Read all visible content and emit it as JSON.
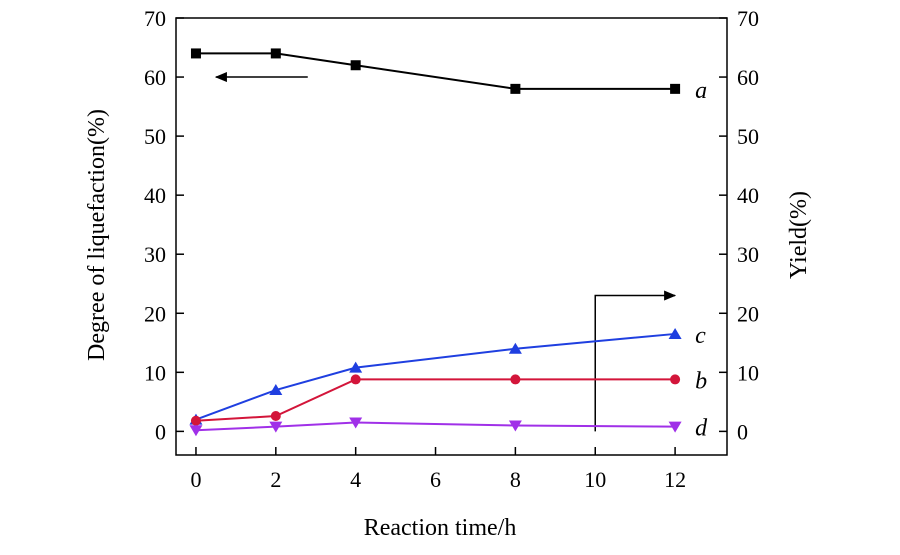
{
  "chart_data": {
    "type": "line",
    "title": "",
    "xlabel": "Reaction time/h",
    "ylabel": "Degree of liquefaction(%)",
    "ylabel_right": "Yield(%)",
    "xlim": [
      -0.5,
      13.3
    ],
    "ylim": [
      -4,
      70
    ],
    "ylim_right": [
      -4,
      70
    ],
    "xticks": [
      0,
      2,
      4,
      6,
      8,
      10,
      12
    ],
    "yticks": [
      0,
      10,
      20,
      30,
      40,
      50,
      60,
      70
    ],
    "yticks_right": [
      0,
      10,
      20,
      30,
      40,
      50,
      60,
      70
    ],
    "grid": false,
    "series": [
      {
        "name": "a",
        "axis": "left",
        "color": "#000000",
        "marker": "square",
        "x": [
          0,
          2,
          4,
          8,
          12
        ],
        "values": [
          64,
          64,
          62,
          58,
          58
        ]
      },
      {
        "name": "c",
        "axis": "right",
        "color": "#1f3fe0",
        "marker": "triangle-up",
        "x": [
          0,
          2,
          4,
          8,
          12
        ],
        "values": [
          2,
          7,
          10.8,
          14,
          16.5
        ]
      },
      {
        "name": "b",
        "axis": "right",
        "color": "#d3153a",
        "marker": "circle",
        "x": [
          0,
          2,
          4,
          8,
          12
        ],
        "values": [
          1.8,
          2.6,
          8.8,
          8.8,
          8.8
        ]
      },
      {
        "name": "d",
        "axis": "right",
        "color": "#a030e8",
        "marker": "triangle-down",
        "x": [
          0,
          2,
          4,
          8,
          12
        ],
        "values": [
          0.2,
          0.8,
          1.5,
          1.0,
          0.8
        ]
      }
    ],
    "annotations": [
      {
        "type": "arrow",
        "direction": "left",
        "axis": "left",
        "x_from": 2.8,
        "x_to": 0.5,
        "y": 60
      },
      {
        "type": "arrow",
        "direction": "right",
        "axis": "right",
        "x_path": [
          10,
          10,
          12
        ],
        "y_path": [
          0,
          23,
          23
        ]
      }
    ]
  }
}
